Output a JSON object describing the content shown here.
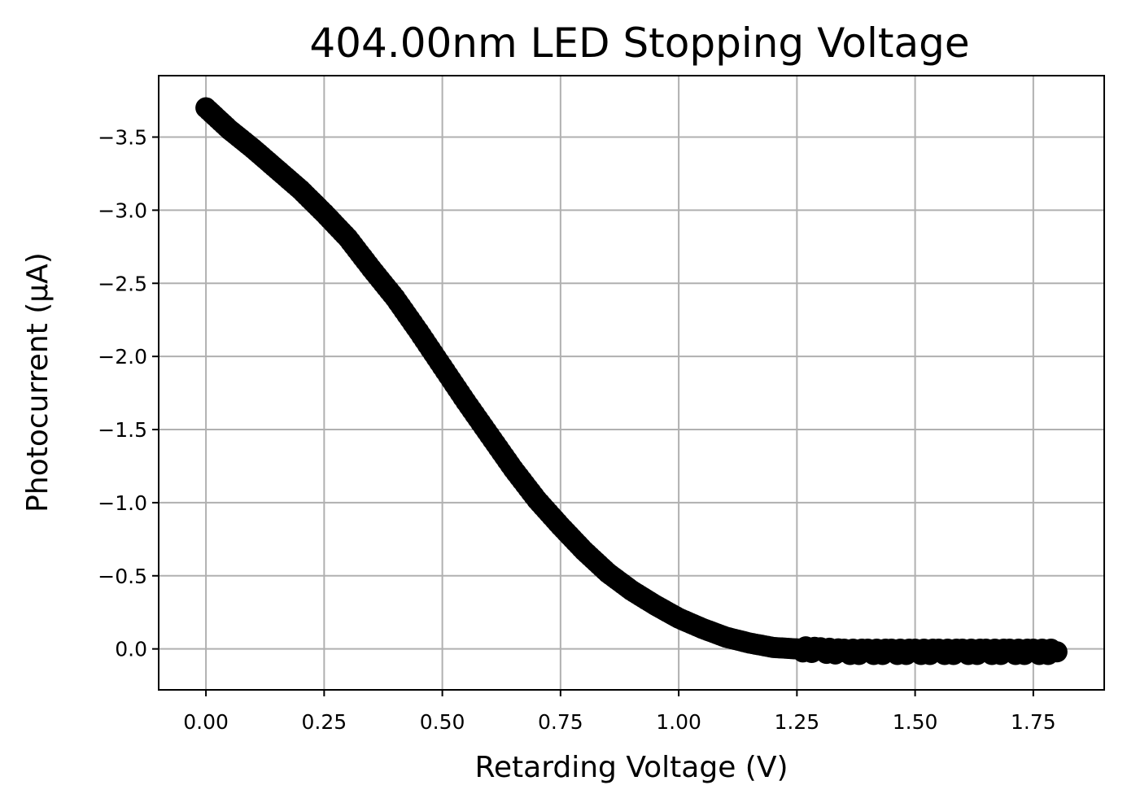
{
  "chart_data": {
    "type": "scatter",
    "title": "404.00nm LED Stopping Voltage",
    "xlabel": "Retarding Voltage (V)",
    "ylabel": "Photocurrent (μA)",
    "xlim": [
      -0.1,
      1.9
    ],
    "ylim": [
      0.28,
      -3.92
    ],
    "y_inverted": true,
    "grid": true,
    "marker_color": "#000000",
    "xticks": [
      {
        "value": 0.0,
        "label": "0.00"
      },
      {
        "value": 0.25,
        "label": "0.25"
      },
      {
        "value": 0.5,
        "label": "0.50"
      },
      {
        "value": 0.75,
        "label": "0.75"
      },
      {
        "value": 1.0,
        "label": "1.00"
      },
      {
        "value": 1.25,
        "label": "1.25"
      },
      {
        "value": 1.5,
        "label": "1.50"
      },
      {
        "value": 1.75,
        "label": "1.75"
      }
    ],
    "yticks": [
      {
        "value": 0.0,
        "label": "0.0"
      },
      {
        "value": -0.5,
        "label": "−0.5"
      },
      {
        "value": -1.0,
        "label": "−1.0"
      },
      {
        "value": -1.5,
        "label": "−1.5"
      },
      {
        "value": -2.0,
        "label": "−2.0"
      },
      {
        "value": -2.5,
        "label": "−2.5"
      },
      {
        "value": -3.0,
        "label": "−3.0"
      },
      {
        "value": -3.5,
        "label": "−3.5"
      }
    ],
    "series": [
      {
        "x": [
          0.0,
          0.05,
          0.1,
          0.15,
          0.2,
          0.25,
          0.3,
          0.35,
          0.4,
          0.45,
          0.5,
          0.55,
          0.6,
          0.65,
          0.7,
          0.75,
          0.8,
          0.85,
          0.9,
          0.95,
          1.0,
          1.05,
          1.1,
          1.15,
          1.2,
          1.25,
          1.3,
          1.35,
          1.4,
          1.45,
          1.5,
          1.55,
          1.6,
          1.65,
          1.7,
          1.75,
          1.8
        ],
        "y": [
          -3.7,
          -3.55,
          -3.42,
          -3.28,
          -3.14,
          -2.98,
          -2.81,
          -2.6,
          -2.4,
          -2.17,
          -1.93,
          -1.69,
          -1.46,
          -1.23,
          -1.02,
          -0.84,
          -0.67,
          -0.52,
          -0.4,
          -0.3,
          -0.21,
          -0.14,
          -0.08,
          -0.04,
          -0.01,
          0.0,
          0.01,
          0.02,
          0.02,
          0.02,
          0.02,
          0.02,
          0.02,
          0.02,
          0.02,
          0.02,
          0.02
        ]
      }
    ]
  }
}
